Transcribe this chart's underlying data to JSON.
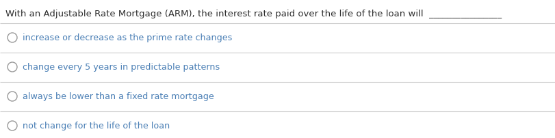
{
  "question": "With an Adjustable Rate Mortgage (ARM), the interest rate paid over the life of the loan will",
  "question_color": "#2e2e2e",
  "question_fontsize": 9.5,
  "underline_text": "________________",
  "options": [
    "increase or decrease as the prime rate changes",
    "change every 5 years in predictable patterns",
    "always be lower than a fixed rate mortgage",
    "not change for the life of the loan"
  ],
  "option_color": "#4a7fb5",
  "option_fontsize": 9.2,
  "circle_color": "#999999",
  "separator_color": "#cccccc",
  "background_color": "#ffffff",
  "fig_width": 8.12,
  "fig_height": 2.03,
  "dpi": 100
}
